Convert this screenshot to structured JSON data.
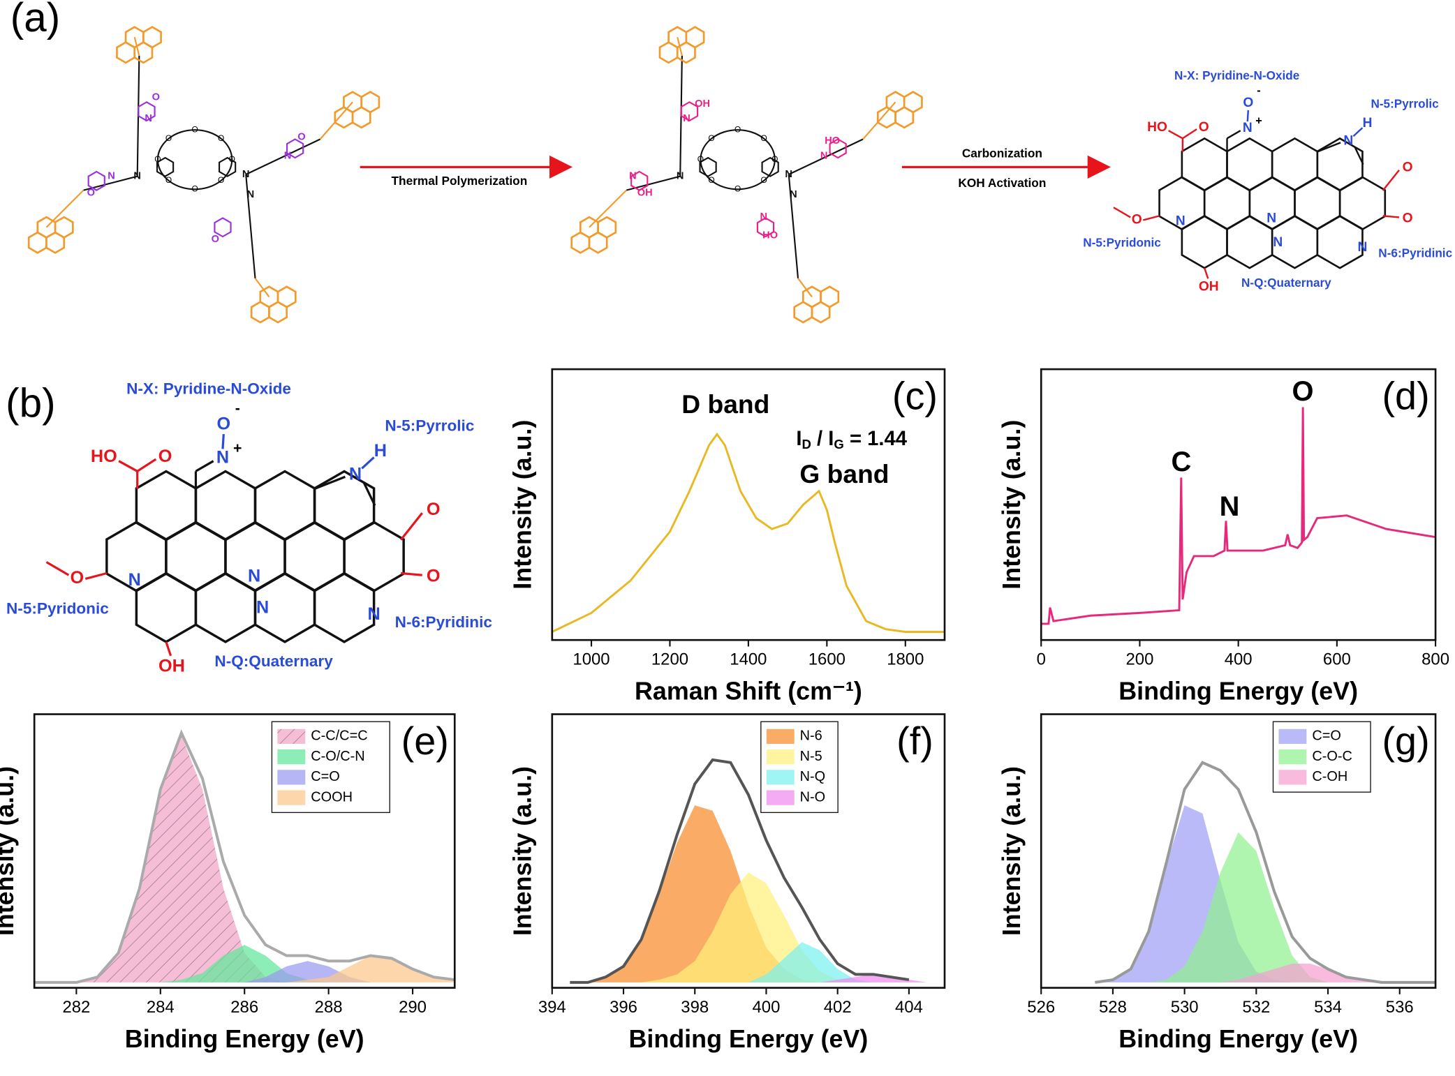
{
  "panels": {
    "a": {
      "label": "(a)",
      "arrow1": "Thermal Polymerization",
      "arrow2_top": "Carbonization",
      "arrow2_bottom": "KOH Activation",
      "monomer_atoms": [
        "N",
        "N",
        "N",
        "O",
        "N",
        "O",
        "N",
        "O",
        "N",
        "O"
      ],
      "monomer_crown": [
        "O",
        "O",
        "O",
        "O",
        "O",
        "O",
        "O",
        "O"
      ],
      "polymer_atoms": [
        "N",
        "N",
        "N",
        "OH",
        "N",
        "HO",
        "N",
        "OH",
        "N",
        "HO",
        "N"
      ],
      "polymer_crown": [
        "O",
        "O",
        "O",
        "O",
        "O",
        "O",
        "O",
        "O"
      ],
      "product": {
        "labels": [
          "N-X: Pyridine-N-Oxide",
          "N-5:Pyrrolic",
          "N-5:Pyridonic",
          "N-6:Pyridinic",
          "N-Q:Quaternary"
        ],
        "atoms": [
          "HO",
          "O",
          "O",
          "-",
          "N",
          "+",
          "N",
          "H",
          "O",
          "O",
          "O",
          "N",
          "N",
          "N",
          "N",
          "OH"
        ]
      }
    },
    "b": {
      "label": "(b)",
      "molecule": {
        "labels": [
          "N-X: Pyridine-N-Oxide",
          "N-5:Pyrrolic",
          "N-5:Pyridonic",
          "N-6:Pyridinic",
          "N-Q:Quaternary"
        ],
        "atoms": [
          "HO",
          "O",
          "O",
          "-",
          "N",
          "+",
          "N",
          "H",
          "O",
          "O",
          "O",
          "N",
          "N",
          "N",
          "N",
          "OH"
        ]
      }
    }
  },
  "chart_data": [
    {
      "type": "line",
      "panel_label": "(c)",
      "xlabel": "Raman Shift (cm⁻¹)",
      "ylabel": "Intensity (a.u.)",
      "annotations": [
        "D band",
        "G band"
      ],
      "ratio": [
        "I",
        "D",
        " / I",
        "G",
        " = 1.44"
      ],
      "xlim": [
        900,
        1900
      ],
      "xticks": [
        1000,
        1200,
        1400,
        1600,
        1800
      ],
      "ylim": [
        0,
        1
      ],
      "x": [
        900,
        1000,
        1100,
        1200,
        1250,
        1300,
        1320,
        1340,
        1380,
        1420,
        1460,
        1500,
        1540,
        1580,
        1600,
        1620,
        1650,
        1700,
        1750,
        1800,
        1900
      ],
      "series": [
        {
          "color": "#e8b923",
          "values": [
            0.03,
            0.1,
            0.22,
            0.4,
            0.55,
            0.72,
            0.76,
            0.72,
            0.55,
            0.45,
            0.41,
            0.43,
            0.5,
            0.55,
            0.48,
            0.36,
            0.2,
            0.07,
            0.04,
            0.03,
            0.03
          ]
        }
      ]
    },
    {
      "type": "line",
      "panel_label": "(d)",
      "xlabel": "Binding Energy (eV)",
      "ylabel": "Intensity (a.u.)",
      "annotations": [
        "C",
        "N",
        "O"
      ],
      "xlim": [
        0,
        800
      ],
      "xticks": [
        0,
        200,
        400,
        600,
        800
      ],
      "ylim": [
        0,
        1
      ],
      "x": [
        0,
        15,
        18,
        25,
        100,
        200,
        280,
        284,
        287,
        295,
        310,
        350,
        372,
        375,
        378,
        450,
        495,
        500,
        505,
        520,
        529,
        531,
        533,
        540,
        560,
        620,
        700,
        800
      ],
      "series": [
        {
          "color": "#e6297a",
          "values": [
            0.06,
            0.06,
            0.12,
            0.07,
            0.09,
            0.1,
            0.11,
            0.6,
            0.15,
            0.25,
            0.31,
            0.31,
            0.33,
            0.44,
            0.33,
            0.33,
            0.35,
            0.39,
            0.35,
            0.34,
            0.36,
            0.86,
            0.37,
            0.38,
            0.45,
            0.46,
            0.41,
            0.38
          ]
        }
      ]
    },
    {
      "type": "area",
      "panel_label": "(e)",
      "xlabel": "Binding Energy (eV)",
      "ylabel": "Intensity (a.u.)",
      "legend": "upper right",
      "xlim": [
        281,
        291
      ],
      "xticks": [
        282,
        284,
        286,
        288,
        290
      ],
      "ylim": [
        -0.02,
        1
      ],
      "x": [
        281,
        281.5,
        282,
        282.5,
        283,
        283.5,
        284,
        284.5,
        285,
        285.5,
        286,
        286.5,
        287,
        287.5,
        288,
        288.5,
        289,
        289.5,
        290,
        290.5,
        291
      ],
      "envelope": {
        "color": "#aaaaaa",
        "values": [
          0,
          0,
          0,
          0.02,
          0.11,
          0.35,
          0.72,
          0.93,
          0.76,
          0.45,
          0.25,
          0.14,
          0.1,
          0.1,
          0.08,
          0.08,
          0.1,
          0.09,
          0.05,
          0.02,
          0.01
        ]
      },
      "series": [
        {
          "name": "C-C/C=C",
          "color": "#f2a3c8",
          "hatch": true,
          "values": [
            0,
            0,
            0,
            0.02,
            0.11,
            0.35,
            0.72,
            0.92,
            0.72,
            0.35,
            0.11,
            0.02,
            0,
            0,
            0,
            0,
            0,
            0,
            0,
            0,
            0
          ]
        },
        {
          "name": "C-O/C-N",
          "color": "#5fe89a",
          "values": [
            0,
            0,
            0,
            0,
            0,
            0,
            0,
            0.01,
            0.035,
            0.1,
            0.14,
            0.1,
            0.035,
            0.01,
            0,
            0,
            0,
            0,
            0,
            0,
            0
          ]
        },
        {
          "name": "C=O",
          "color": "#9a9af0",
          "values": [
            0,
            0,
            0,
            0,
            0,
            0,
            0,
            0,
            0,
            0,
            0,
            0.02,
            0.06,
            0.08,
            0.06,
            0.02,
            0,
            0,
            0,
            0,
            0
          ]
        },
        {
          "name": "COOH",
          "color": "#fcc88a",
          "values": [
            0,
            0,
            0,
            0,
            0,
            0,
            0,
            0,
            0,
            0,
            0,
            0,
            0,
            0.01,
            0.02,
            0.06,
            0.1,
            0.09,
            0.05,
            0.02,
            0.01
          ]
        }
      ]
    },
    {
      "type": "area",
      "panel_label": "(f)",
      "xlabel": "Binding Energy (eV)",
      "ylabel": "Intensity (a.u.)",
      "legend": "upper center",
      "xlim": [
        394,
        405
      ],
      "xticks": [
        394,
        396,
        398,
        400,
        402,
        404
      ],
      "ylim": [
        -0.02,
        1
      ],
      "x": [
        394,
        394.5,
        395,
        395.5,
        396,
        396.5,
        397,
        397.5,
        398,
        398.5,
        399,
        399.5,
        400,
        400.5,
        401,
        401.5,
        402,
        402.5,
        403,
        403.5,
        404,
        404.5,
        405
      ],
      "envelope": {
        "color": "#555555",
        "values": [
          null,
          0,
          0,
          0.02,
          0.06,
          0.16,
          0.34,
          0.55,
          0.74,
          0.83,
          0.82,
          0.7,
          0.53,
          0.39,
          0.28,
          0.16,
          0.07,
          0.03,
          0.03,
          0.02,
          0.01,
          null,
          null
        ]
      },
      "series": [
        {
          "name": "N-6",
          "color": "#f88a2a",
          "values": [
            0,
            0,
            0,
            0.02,
            0.06,
            0.16,
            0.33,
            0.52,
            0.66,
            0.64,
            0.49,
            0.29,
            0.13,
            0.05,
            0.01,
            0,
            0,
            0,
            0,
            0,
            0,
            0,
            0
          ]
        },
        {
          "name": "N-5",
          "color": "#fff07a",
          "values": [
            0,
            0,
            0,
            0,
            0,
            0,
            0.01,
            0.03,
            0.08,
            0.19,
            0.33,
            0.41,
            0.37,
            0.25,
            0.12,
            0.04,
            0.01,
            0,
            0,
            0,
            0,
            0,
            0
          ]
        },
        {
          "name": "N-Q",
          "color": "#7af0f0",
          "values": [
            0,
            0,
            0,
            0,
            0,
            0,
            0,
            0,
            0,
            0,
            0,
            0,
            0.03,
            0.09,
            0.15,
            0.12,
            0.05,
            0.01,
            0,
            0,
            0,
            0,
            0
          ]
        },
        {
          "name": "N-O",
          "color": "#f08af0",
          "values": [
            0,
            0,
            0,
            0,
            0,
            0,
            0,
            0,
            0,
            0,
            0,
            0,
            0,
            0,
            0,
            0,
            0.01,
            0.02,
            0.03,
            0.02,
            0.01,
            0,
            0
          ]
        }
      ]
    },
    {
      "type": "area",
      "panel_label": "(g)",
      "xlabel": "Binding Energy (eV)",
      "ylabel": "Intensity (a.u.)",
      "legend": "upper right",
      "xlim": [
        526,
        537
      ],
      "xticks": [
        526,
        528,
        530,
        532,
        534,
        536
      ],
      "ylim": [
        -0.02,
        1
      ],
      "x": [
        526,
        526.5,
        527,
        527.5,
        528,
        528.5,
        529,
        529.5,
        530,
        530.5,
        531,
        531.5,
        532,
        532.5,
        533,
        533.5,
        534,
        534.5,
        535,
        535.5,
        536,
        536.5,
        537
      ],
      "envelope": {
        "color": "#999999",
        "values": [
          null,
          null,
          null,
          0,
          0.01,
          0.05,
          0.19,
          0.45,
          0.72,
          0.82,
          0.79,
          0.72,
          0.56,
          0.34,
          0.17,
          0.09,
          0.05,
          0.02,
          0.01,
          0,
          0,
          0,
          0
        ]
      },
      "series": [
        {
          "name": "C=O",
          "color": "#a0a0f5",
          "values": [
            0,
            0,
            0,
            0,
            0.01,
            0.05,
            0.19,
            0.44,
            0.66,
            0.63,
            0.38,
            0.15,
            0.04,
            0.01,
            0,
            0,
            0,
            0,
            0,
            0,
            0,
            0,
            0
          ]
        },
        {
          "name": "C-O-C",
          "color": "#90f090",
          "values": [
            0,
            0,
            0,
            0,
            0,
            0,
            0,
            0.01,
            0.06,
            0.19,
            0.41,
            0.56,
            0.49,
            0.28,
            0.1,
            0.02,
            0,
            0,
            0,
            0,
            0,
            0,
            0
          ]
        },
        {
          "name": "C-OH",
          "color": "#f5a0d0",
          "values": [
            0,
            0,
            0,
            0,
            0,
            0,
            0,
            0,
            0,
            0,
            0,
            0.01,
            0.03,
            0.05,
            0.07,
            0.07,
            0.05,
            0.02,
            0.01,
            0,
            0,
            0,
            0
          ]
        }
      ]
    }
  ]
}
